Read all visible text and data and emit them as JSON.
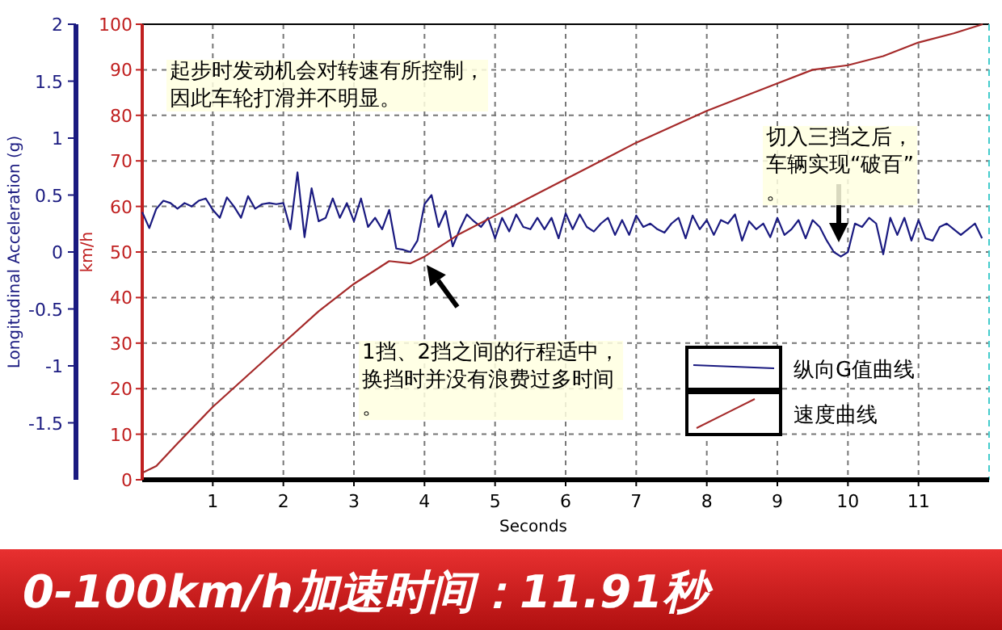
{
  "chart_data": {
    "type": "line",
    "title": "0-100km/h加速时间：11.91秒",
    "xlabel": "Seconds",
    "ylabel": "Longitudinal Acceleration (g)",
    "y2label": "km/h",
    "xlim": [
      0,
      12
    ],
    "xticks": [
      1,
      2,
      3,
      4,
      5,
      6,
      7,
      8,
      9,
      10,
      11
    ],
    "ylim": [
      -2,
      2
    ],
    "yticks": [
      -1.5,
      -1,
      -0.5,
      0,
      0.5,
      1,
      1.5,
      2
    ],
    "y2lim": [
      0,
      100
    ],
    "y2ticks": [
      0,
      10,
      20,
      30,
      40,
      50,
      60,
      70,
      80,
      90,
      100
    ],
    "grid": true,
    "legend": "bottom right",
    "line_style": "solid",
    "marker": "none",
    "series": [
      {
        "name": "纵向G值曲线",
        "color": "#1a1a80",
        "x": [
          0,
          0.1,
          0.2,
          0.3,
          0.4,
          0.5,
          0.6,
          0.7,
          0.8,
          0.9,
          1,
          1.1,
          1.2,
          1.3,
          1.4,
          1.5,
          1.6,
          1.7,
          1.8,
          1.9,
          2,
          2.1,
          2.2,
          2.3,
          2.4,
          2.5,
          2.6,
          2.7,
          2.8,
          2.9,
          3,
          3.1,
          3.2,
          3.3,
          3.4,
          3.5,
          3.6,
          3.7,
          3.8,
          3.9,
          4,
          4.1,
          4.2,
          4.3,
          4.4,
          4.5,
          4.6,
          4.7,
          4.8,
          4.9,
          5,
          5.1,
          5.2,
          5.3,
          5.4,
          5.5,
          5.6,
          5.7,
          5.8,
          5.9,
          6,
          6.1,
          6.2,
          6.3,
          6.4,
          6.5,
          6.6,
          6.7,
          6.8,
          6.9,
          7,
          7.1,
          7.2,
          7.3,
          7.4,
          7.5,
          7.6,
          7.7,
          7.8,
          7.9,
          8,
          8.1,
          8.2,
          8.3,
          8.4,
          8.5,
          8.6,
          8.7,
          8.8,
          8.9,
          9,
          9.1,
          9.2,
          9.3,
          9.4,
          9.5,
          9.6,
          9.7,
          9.8,
          9.9,
          10,
          10.1,
          10.2,
          10.3,
          10.4,
          10.5,
          10.6,
          10.7,
          10.8,
          10.9,
          11,
          11.1,
          11.2,
          11.3,
          11.4,
          11.5,
          11.6,
          11.7,
          11.8,
          11.9
        ],
        "values": [
          0.35,
          0.21,
          0.38,
          0.45,
          0.43,
          0.38,
          0.43,
          0.4,
          0.45,
          0.47,
          0.37,
          0.3,
          0.48,
          0.4,
          0.3,
          0.49,
          0.38,
          0.42,
          0.43,
          0.42,
          0.43,
          0.2,
          0.7,
          0.13,
          0.56,
          0.27,
          0.3,
          0.47,
          0.3,
          0.43,
          0.27,
          0.47,
          0.22,
          0.3,
          0.2,
          0.37,
          0.03,
          0.02,
          0,
          0.1,
          0.42,
          0.5,
          0.22,
          0.36,
          0.05,
          0.2,
          0.33,
          0.27,
          0.22,
          0.3,
          0.12,
          0.3,
          0.18,
          0.33,
          0.22,
          0.2,
          0.3,
          0.2,
          0.3,
          0.12,
          0.34,
          0.2,
          0.33,
          0.22,
          0.18,
          0.25,
          0.3,
          0.15,
          0.28,
          0.15,
          0.32,
          0.22,
          0.25,
          0.2,
          0.17,
          0.25,
          0.3,
          0.12,
          0.32,
          0.2,
          0.28,
          0.15,
          0.28,
          0.25,
          0.33,
          0.1,
          0.27,
          0.2,
          0.25,
          0.13,
          0.3,
          0.15,
          0.2,
          0.28,
          0.12,
          0.28,
          0.22,
          0.1,
          0,
          -0.04,
          0,
          0.25,
          0.22,
          0.3,
          0.25,
          -0.02,
          0.3,
          0.15,
          0.3,
          0.1,
          0.28,
          0.12,
          0.1,
          0.22,
          0.25,
          0.2,
          0.15,
          0.2,
          0.25,
          0.12
        ]
      },
      {
        "name": "速度曲线",
        "color": "#a52a2a",
        "axis": "y2",
        "x": [
          0,
          0.2,
          0.5,
          1,
          1.5,
          2,
          2.5,
          3,
          3.5,
          3.8,
          4,
          4.5,
          5,
          5.5,
          6,
          6.5,
          7,
          7.5,
          8,
          8.5,
          9,
          9.5,
          10,
          10.5,
          11,
          11.5,
          11.91
        ],
        "values": [
          1.5,
          3,
          8,
          16,
          23,
          30,
          37,
          43,
          48,
          47.5,
          49,
          54,
          58,
          62,
          66,
          70,
          74,
          77.5,
          81,
          84,
          87,
          90,
          91,
          93,
          96,
          98,
          100
        ]
      }
    ],
    "annotations": [
      "起步时发动机会对转速有所控制，因此车轮打滑并不明显。",
      "1挡、2挡之间的行程适中，换挡时并没有浪费过多时间。",
      "切入三挡之后，车辆实现“破百”。"
    ]
  }
}
